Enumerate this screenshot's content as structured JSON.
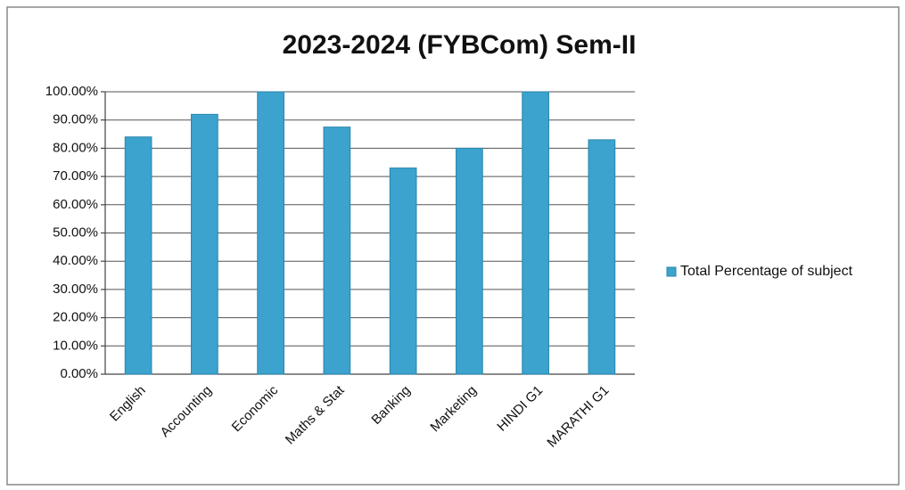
{
  "chart_data": {
    "type": "bar",
    "title": "2023-2024 (FYBCom) Sem-II",
    "categories": [
      "English",
      "Accounting",
      "Economic",
      "Maths & Stat",
      "Banking",
      "Marketing",
      "HINDI G1",
      "MARATHI G1"
    ],
    "series": [
      {
        "name": "Total Percentage of subject",
        "color": "#3ba3cd",
        "values": [
          84,
          92,
          100,
          87.5,
          73,
          80,
          100,
          83
        ]
      }
    ],
    "ylim": [
      0,
      100
    ],
    "yticks": [
      {
        "value": 0,
        "label": "0.00%"
      },
      {
        "value": 10,
        "label": "10.00%"
      },
      {
        "value": 20,
        "label": "20.00%"
      },
      {
        "value": 30,
        "label": "30.00%"
      },
      {
        "value": 40,
        "label": "40.00%"
      },
      {
        "value": 50,
        "label": "50.00%"
      },
      {
        "value": 60,
        "label": "60.00%"
      },
      {
        "value": 70,
        "label": "70.00%"
      },
      {
        "value": 80,
        "label": "80.00%"
      },
      {
        "value": 90,
        "label": "90.00%"
      },
      {
        "value": 100,
        "label": "100.00%"
      }
    ],
    "grid": true,
    "legend": "right"
  }
}
